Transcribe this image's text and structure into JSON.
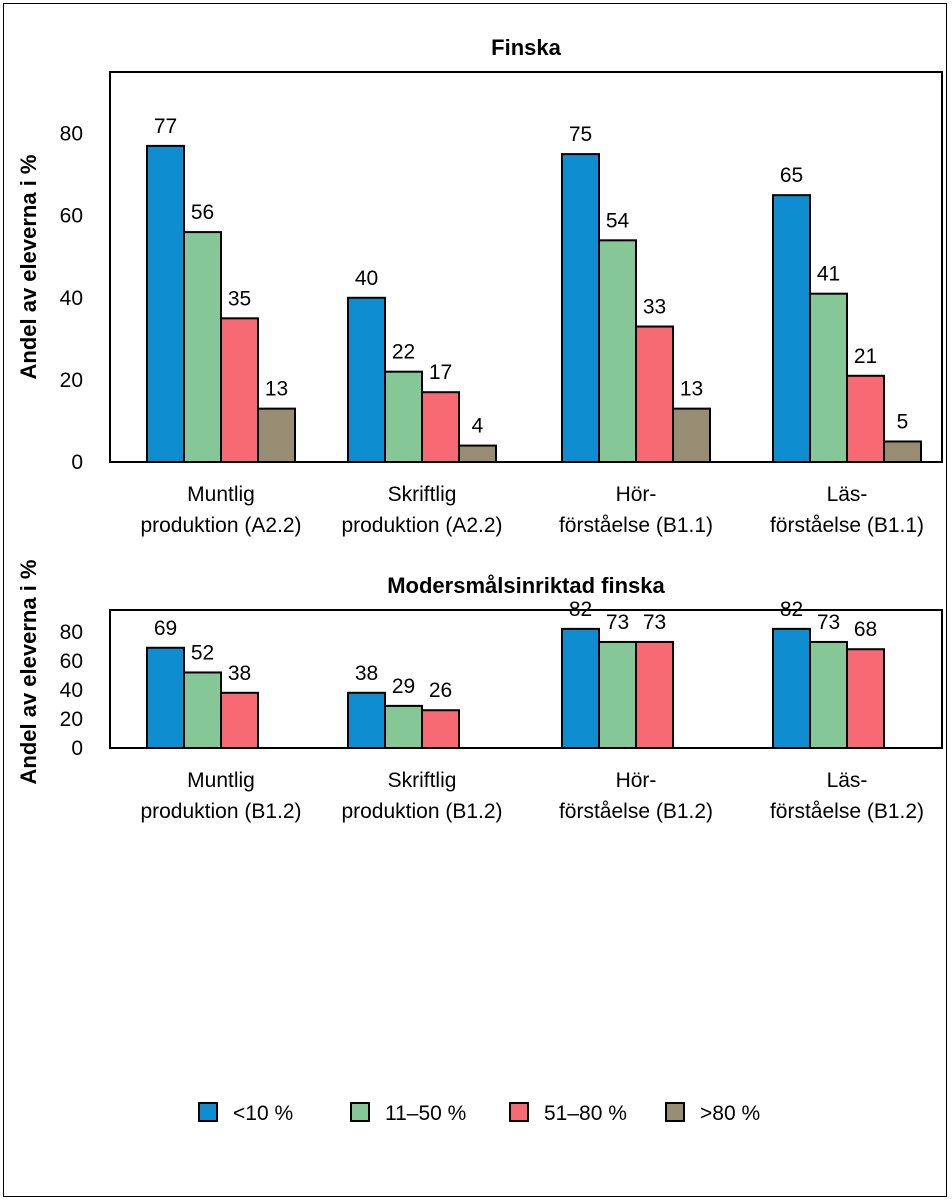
{
  "chart_data": [
    {
      "type": "bar",
      "title": "Finska",
      "ylabel": "Andel av eleverna i %",
      "xlabel": "",
      "ylim": [
        0,
        95
      ],
      "yticks": [
        "0",
        "20",
        "40",
        "60",
        "80"
      ],
      "categories": [
        [
          "Muntlig",
          "produktion (A2.2)"
        ],
        [
          "Skriftlig",
          "produktion (A2.2)"
        ],
        [
          "Hör-",
          "förståelse (B1.1)"
        ],
        [
          "Läs-",
          "förståelse (B1.1)"
        ]
      ],
      "series": [
        {
          "name": "<10 %",
          "color": "#0f8dd1",
          "values": [
            77,
            40,
            75,
            65
          ]
        },
        {
          "name": "11–50 %",
          "color": "#86c797",
          "values": [
            56,
            22,
            54,
            41
          ]
        },
        {
          "name": "51–80 %",
          "color": "#f76a73",
          "values": [
            35,
            17,
            33,
            21
          ]
        },
        {
          "name": ">80 %",
          "color": "#978d73",
          "values": [
            13,
            4,
            13,
            5
          ]
        }
      ],
      "grid": false
    },
    {
      "type": "bar",
      "title": "Modersmålsinriktad finska",
      "ylabel": "Andel av eleverna i %",
      "xlabel": "",
      "ylim": [
        0,
        95
      ],
      "yticks": [
        "0",
        "20",
        "40",
        "60",
        "80"
      ],
      "categories": [
        [
          "Muntlig",
          "produktion (B1.2)"
        ],
        [
          "Skriftlig",
          "produktion (B1.2)"
        ],
        [
          "Hör-",
          "förståelse (B1.2)"
        ],
        [
          "Läs-",
          "förståelse (B1.2)"
        ]
      ],
      "series": [
        {
          "name": "<10 %",
          "color": "#0f8dd1",
          "values": [
            69,
            38,
            82,
            82
          ]
        },
        {
          "name": "11–50 %",
          "color": "#86c797",
          "values": [
            52,
            29,
            73,
            73
          ]
        },
        {
          "name": "51–80 %",
          "color": "#f76a73",
          "values": [
            38,
            26,
            73,
            68
          ]
        }
      ],
      "grid": false
    }
  ],
  "legend": {
    "placement": "bottom",
    "items": [
      {
        "label": "<10 %",
        "color": "#0f8dd1"
      },
      {
        "label": "11–50 %",
        "color": "#86c797"
      },
      {
        "label": "51–80 %",
        "color": "#f76a73"
      },
      {
        "label": ">80 %",
        "color": "#978d73"
      }
    ]
  }
}
